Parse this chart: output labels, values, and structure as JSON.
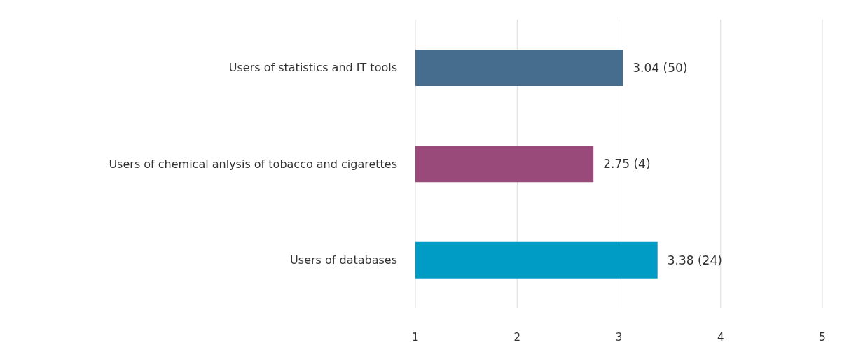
{
  "chart_data": {
    "type": "bar",
    "orientation": "horizontal",
    "categories": [
      "Users of statistics and IT tools",
      "Users of chemical anlysis of tobacco and cigarettes",
      "Users of databases"
    ],
    "values": [
      3.04,
      2.75,
      3.38
    ],
    "colors": [
      "#476d8e",
      "#9a4a7a",
      "#009cc6"
    ],
    "value_labels": [
      "3.04 (50)",
      "2.75 (4)",
      "3.38 (24)"
    ],
    "xlim": [
      1,
      5
    ],
    "xticks": [
      1,
      2,
      3,
      4,
      5
    ],
    "grid": "x"
  }
}
